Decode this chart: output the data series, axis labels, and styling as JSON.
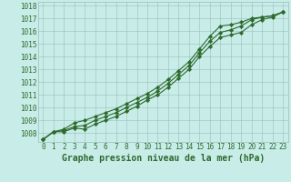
{
  "x": [
    0,
    1,
    2,
    3,
    4,
    5,
    6,
    7,
    8,
    9,
    10,
    11,
    12,
    13,
    14,
    15,
    16,
    17,
    18,
    19,
    20,
    21,
    22,
    23
  ],
  "line1": [
    1007.5,
    1008.1,
    1008.3,
    1008.8,
    1009.0,
    1009.3,
    1009.6,
    1009.9,
    1010.3,
    1010.7,
    1011.1,
    1011.6,
    1012.2,
    1012.9,
    1013.6,
    1014.6,
    1015.6,
    1016.4,
    1016.5,
    1016.7,
    1017.0,
    1017.1,
    1017.2,
    1017.5
  ],
  "line2": [
    1007.5,
    1008.1,
    1008.2,
    1008.5,
    1008.6,
    1009.0,
    1009.3,
    1009.6,
    1010.0,
    1010.4,
    1010.8,
    1011.3,
    1011.9,
    1012.6,
    1013.3,
    1014.3,
    1015.2,
    1015.9,
    1016.1,
    1016.4,
    1016.9,
    1017.1,
    1017.2,
    1017.5
  ],
  "line3": [
    1007.5,
    1008.1,
    1008.1,
    1008.4,
    1008.3,
    1008.7,
    1009.0,
    1009.3,
    1009.7,
    1010.1,
    1010.6,
    1011.0,
    1011.6,
    1012.3,
    1013.0,
    1014.0,
    1014.8,
    1015.5,
    1015.7,
    1015.9,
    1016.5,
    1016.9,
    1017.1,
    1017.5
  ],
  "ylim_min": 1007.3,
  "ylim_max": 1018.3,
  "yticks": [
    1008,
    1009,
    1010,
    1011,
    1012,
    1013,
    1014,
    1015,
    1016,
    1017,
    1018
  ],
  "xticks": [
    0,
    1,
    2,
    3,
    4,
    5,
    6,
    7,
    8,
    9,
    10,
    11,
    12,
    13,
    14,
    15,
    16,
    17,
    18,
    19,
    20,
    21,
    22,
    23
  ],
  "xlabel": "Graphe pression niveau de la mer (hPa)",
  "line_color": "#2d6a2d",
  "bg_color": "#c8ece8",
  "grid_color": "#9abfba",
  "text_color": "#2d6a2d",
  "marker": "D",
  "markersize": 2.2,
  "linewidth": 0.8,
  "tick_fontsize": 5.5,
  "xlabel_fontsize": 7.0
}
